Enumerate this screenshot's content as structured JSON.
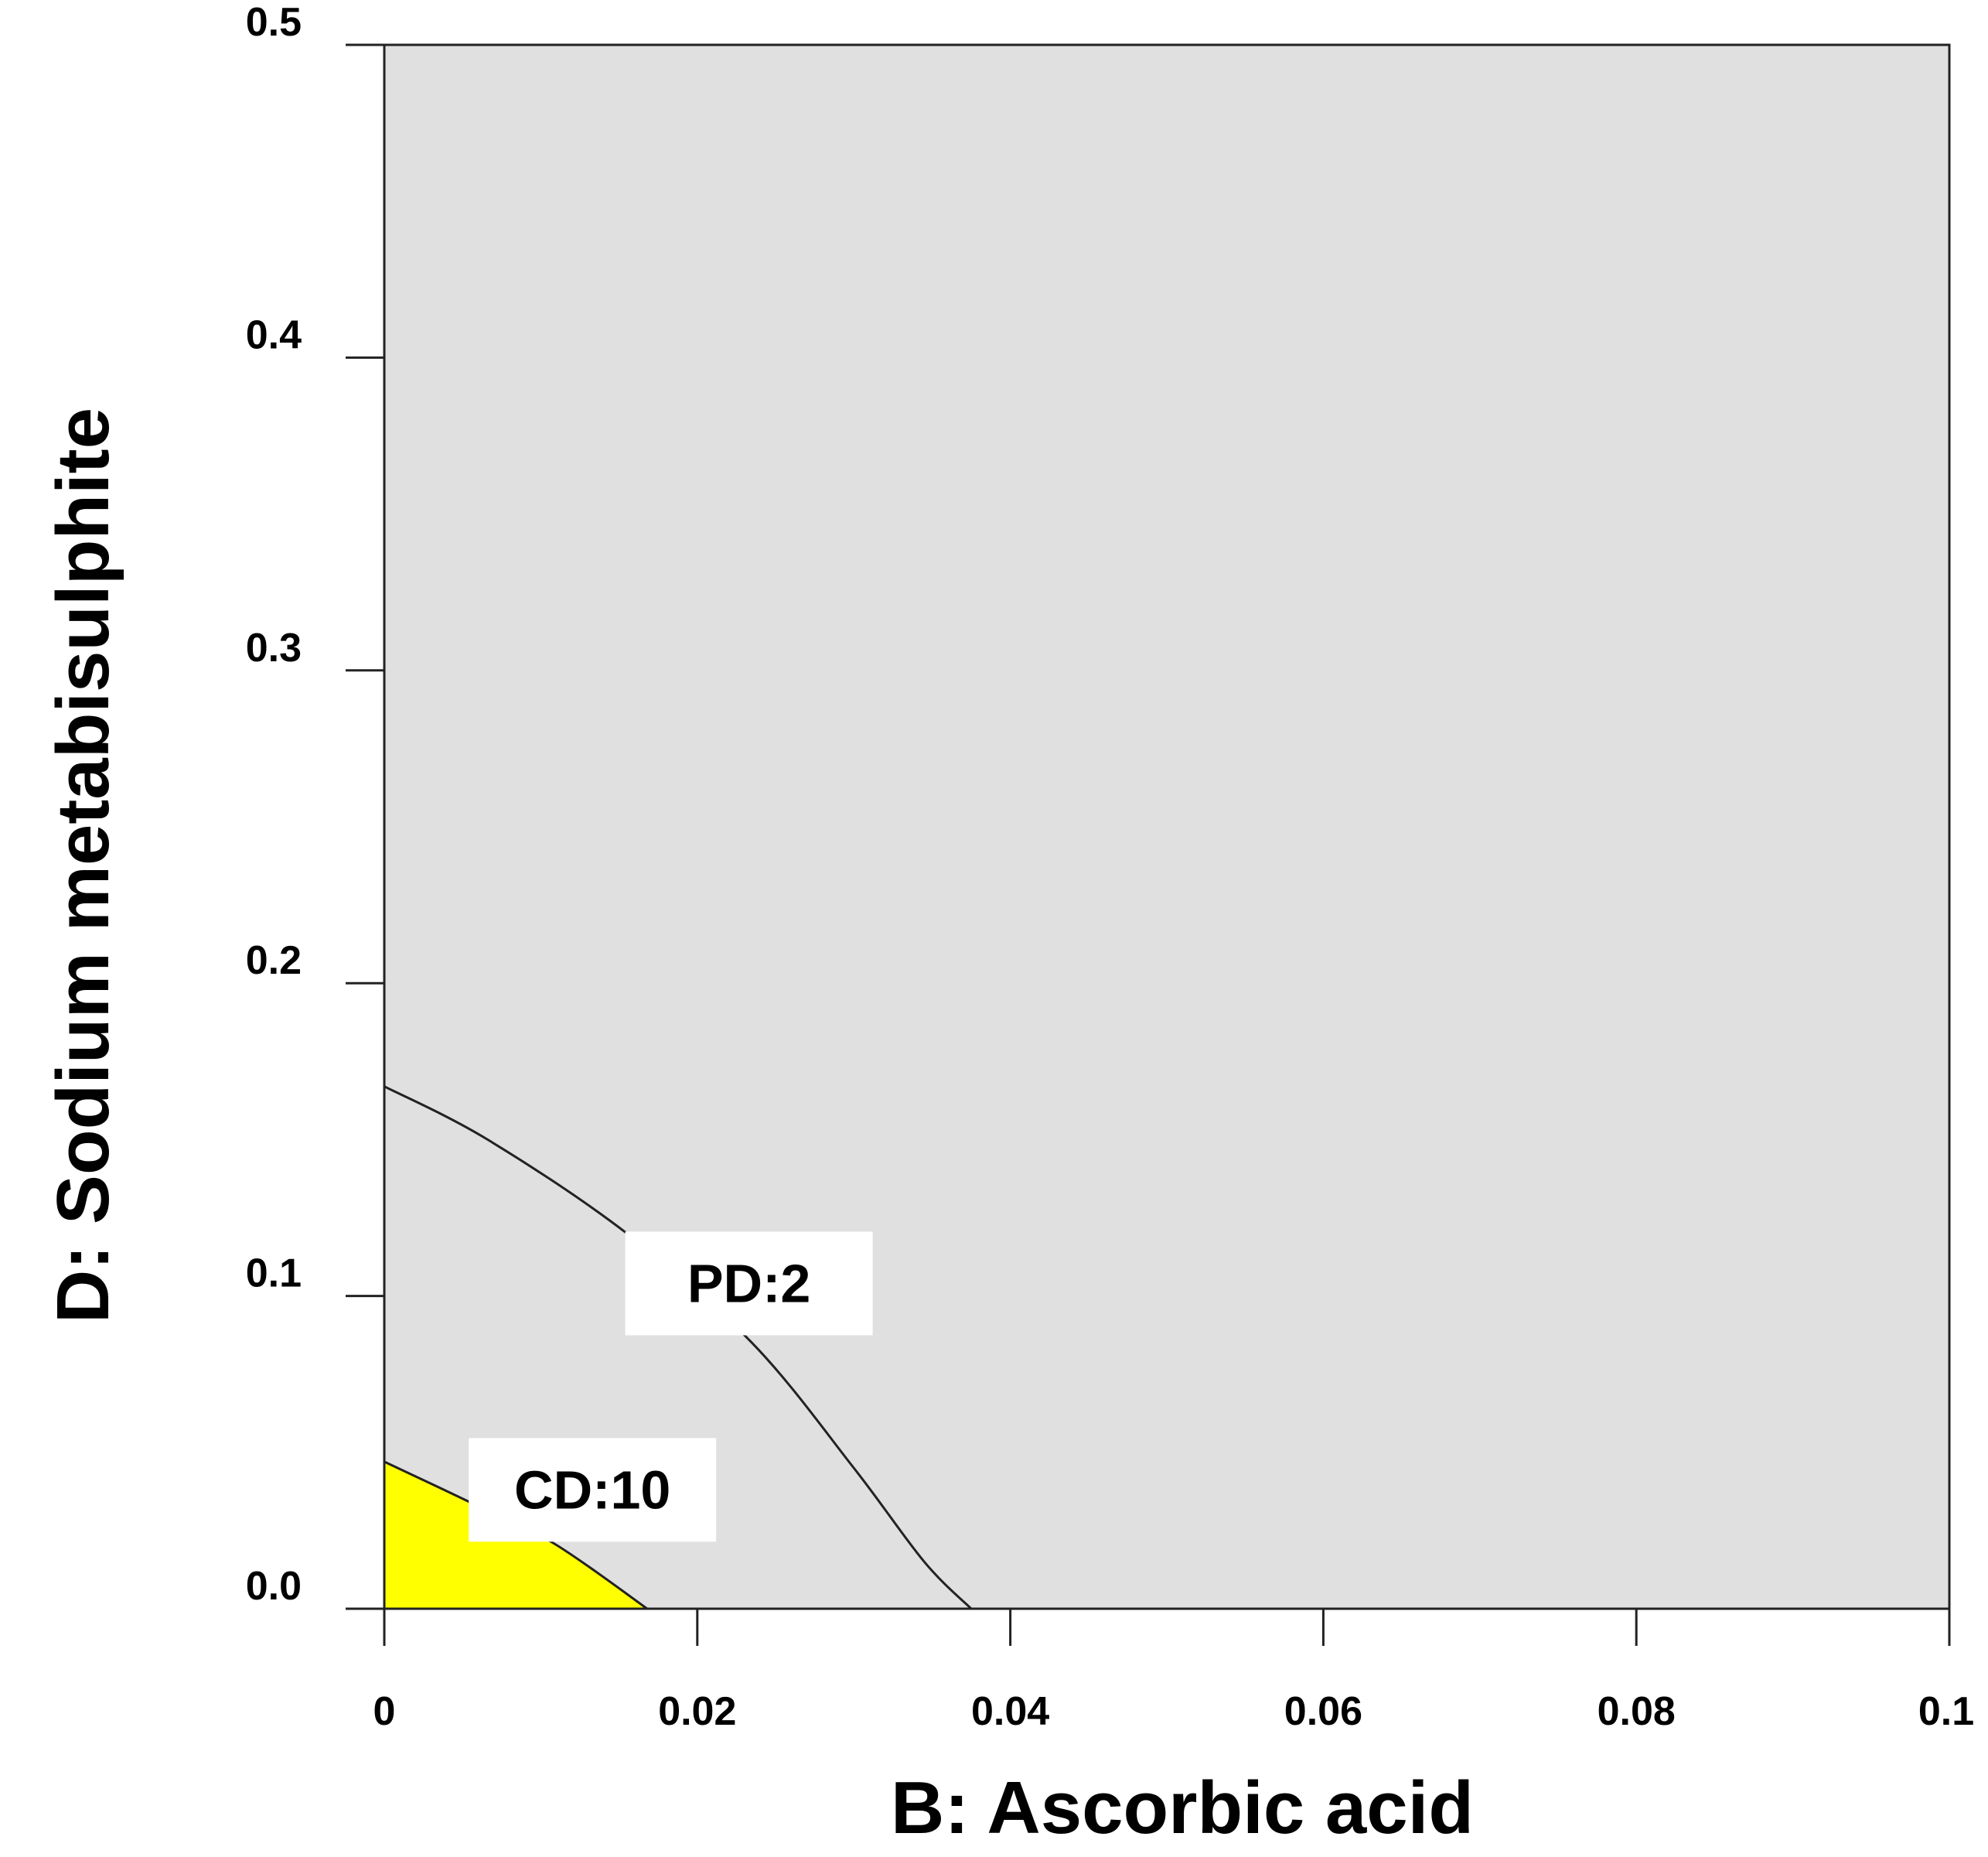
{
  "chart_data": {
    "type": "contour",
    "title": "",
    "xlabel": "B: Ascorbic acid",
    "ylabel": "D: Sodium metabisulphite",
    "xlim": [
      0,
      0.1
    ],
    "ylim": [
      0,
      0.5
    ],
    "x_ticks": [
      {
        "value": 0,
        "label": "0"
      },
      {
        "value": 0.02,
        "label": "0.02"
      },
      {
        "value": 0.04,
        "label": "0.04"
      },
      {
        "value": 0.06,
        "label": "0.06"
      },
      {
        "value": 0.08,
        "label": "0.08"
      },
      {
        "value": 0.1,
        "label": "0.1"
      }
    ],
    "y_ticks": [
      {
        "value": 0.0,
        "label": "0.0"
      },
      {
        "value": 0.1,
        "label": "0.1"
      },
      {
        "value": 0.2,
        "label": "0.2"
      },
      {
        "value": 0.3,
        "label": "0.3"
      },
      {
        "value": 0.4,
        "label": "0.4"
      },
      {
        "value": 0.5,
        "label": "0.5"
      }
    ],
    "background_color": "#e0e0e0",
    "contours": [
      {
        "name": "PD",
        "label": "PD:2",
        "value": 2,
        "points": [
          [
            0,
            0.167
          ],
          [
            0.0066,
            0.15
          ],
          [
            0.0155,
            0.12
          ],
          [
            0.0235,
            0.085
          ],
          [
            0.03,
            0.045
          ],
          [
            0.0345,
            0.015
          ],
          [
            0.0375,
            0.0
          ]
        ],
        "label_at": [
          0.0233,
          0.104
        ]
      },
      {
        "name": "CD",
        "label": "CD:10",
        "value": 10,
        "points": [
          [
            0,
            0.047
          ],
          [
            0.0055,
            0.034
          ],
          [
            0.0108,
            0.021
          ],
          [
            0.0168,
            0.0
          ]
        ],
        "fill_color": "#ffff00",
        "label_at": [
          0.0133,
          0.038
        ]
      }
    ]
  }
}
